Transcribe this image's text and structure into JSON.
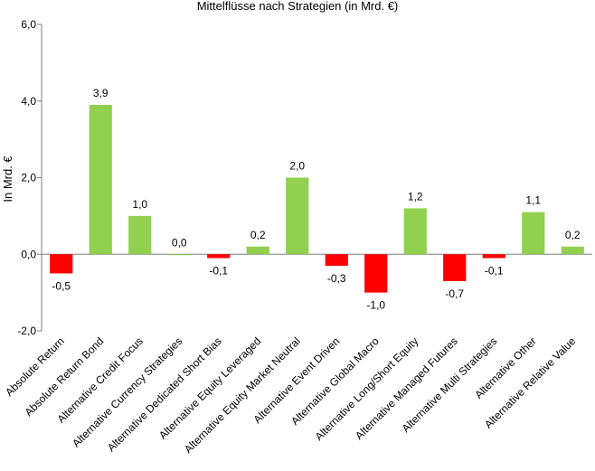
{
  "chart_data": {
    "type": "bar",
    "title": "Mittelflüsse nach Strategien (in Mrd. €)",
    "xlabel": "",
    "ylabel": "In Mrd. €",
    "ylim": [
      -2,
      6
    ],
    "yticks": [
      -2,
      0,
      2,
      4,
      6
    ],
    "ytick_labels": [
      "-2,0",
      "0,0",
      "2,0",
      "4,0",
      "6,0"
    ],
    "grid": false,
    "legend": "none",
    "colors": {
      "positive": "#92d050",
      "negative": "#ff0000",
      "axis": "#7f7f7f"
    },
    "categories": [
      "Absolute Return",
      "Absolute Return Bond",
      "Alternative Credit Focus",
      "Alternative Currency Strategies",
      "Alternative Dedicated Short Bias",
      "Alternative Equity Leveraged",
      "Alternative Equity Market Neutral",
      "Alternative Event Driven",
      "Alternative Global Macro",
      "Alternative Long/Short Equity",
      "Alternative Managed Futures",
      "Alternative Multi Strategies",
      "Alternative Other",
      "Alternative Relative Value"
    ],
    "values": [
      -0.5,
      3.9,
      1.0,
      0.0,
      -0.1,
      0.2,
      2.0,
      -0.3,
      -1.0,
      1.2,
      -0.7,
      -0.1,
      1.1,
      0.2
    ],
    "data_labels": [
      "-0,5",
      "3,9",
      "1,0",
      "0,0",
      "-0,1",
      "0,2",
      "2,0",
      "-0,3",
      "-1,0",
      "1,2",
      "-0,7",
      "-0,1",
      "1,1",
      "0,2"
    ]
  }
}
